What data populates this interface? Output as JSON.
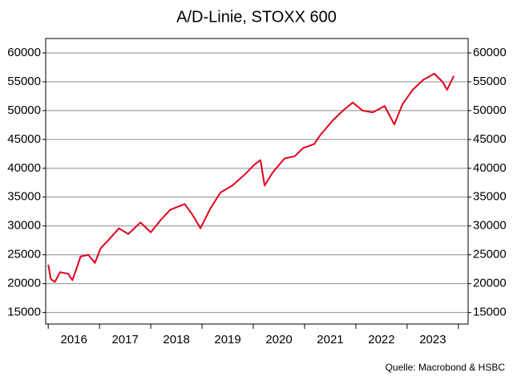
{
  "chart_data": {
    "type": "line",
    "title": "A/D-Linie, STOXX 600",
    "source": "Quelle: Macrobond & HSBC",
    "x": [
      2016.0,
      2016.05,
      2016.13,
      2016.23,
      2016.39,
      2016.47,
      2016.55,
      2016.63,
      2016.78,
      2016.91,
      2017.02,
      2017.17,
      2017.38,
      2017.56,
      2017.8,
      2018.0,
      2018.19,
      2018.38,
      2018.66,
      2018.81,
      2018.97,
      2019.16,
      2019.36,
      2019.59,
      2019.83,
      2020.03,
      2020.14,
      2020.22,
      2020.38,
      2020.61,
      2020.81,
      2020.97,
      2021.19,
      2021.31,
      2021.55,
      2021.75,
      2021.94,
      2022.13,
      2022.33,
      2022.56,
      2022.75,
      2022.91,
      2023.11,
      2023.31,
      2023.53,
      2023.69,
      2023.78,
      2023.91
    ],
    "series": [
      {
        "name": "A/D-Linie",
        "color": "#e2001a",
        "values": [
          23300,
          20800,
          20300,
          22000,
          21700,
          20600,
          22600,
          24700,
          25000,
          23600,
          26100,
          27500,
          29600,
          28600,
          30600,
          28900,
          31000,
          32800,
          33800,
          32000,
          29600,
          33000,
          35800,
          37000,
          38900,
          40700,
          41400,
          37000,
          39300,
          41700,
          42100,
          43500,
          44200,
          45800,
          48300,
          50000,
          51400,
          50000,
          49700,
          50800,
          47600,
          51100,
          53600,
          55300,
          56400,
          55000,
          53600,
          56000
        ]
      }
    ],
    "xlim": [
      2015.95,
      2024.19
    ],
    "xticks": [
      {
        "value": 2016,
        "label": "2016"
      },
      {
        "value": 2017,
        "label": "2017"
      },
      {
        "value": 2018,
        "label": "2018"
      },
      {
        "value": 2019,
        "label": "2019"
      },
      {
        "value": 2020,
        "label": "2020"
      },
      {
        "value": 2021,
        "label": "2021"
      },
      {
        "value": 2022,
        "label": "2022"
      },
      {
        "value": 2023,
        "label": "2023"
      },
      {
        "value": 2024,
        "label": ""
      }
    ],
    "ylim": [
      13000,
      62500
    ],
    "yticks": [
      15000,
      20000,
      25000,
      30000,
      35000,
      40000,
      45000,
      50000,
      55000,
      60000
    ],
    "grid": true
  }
}
